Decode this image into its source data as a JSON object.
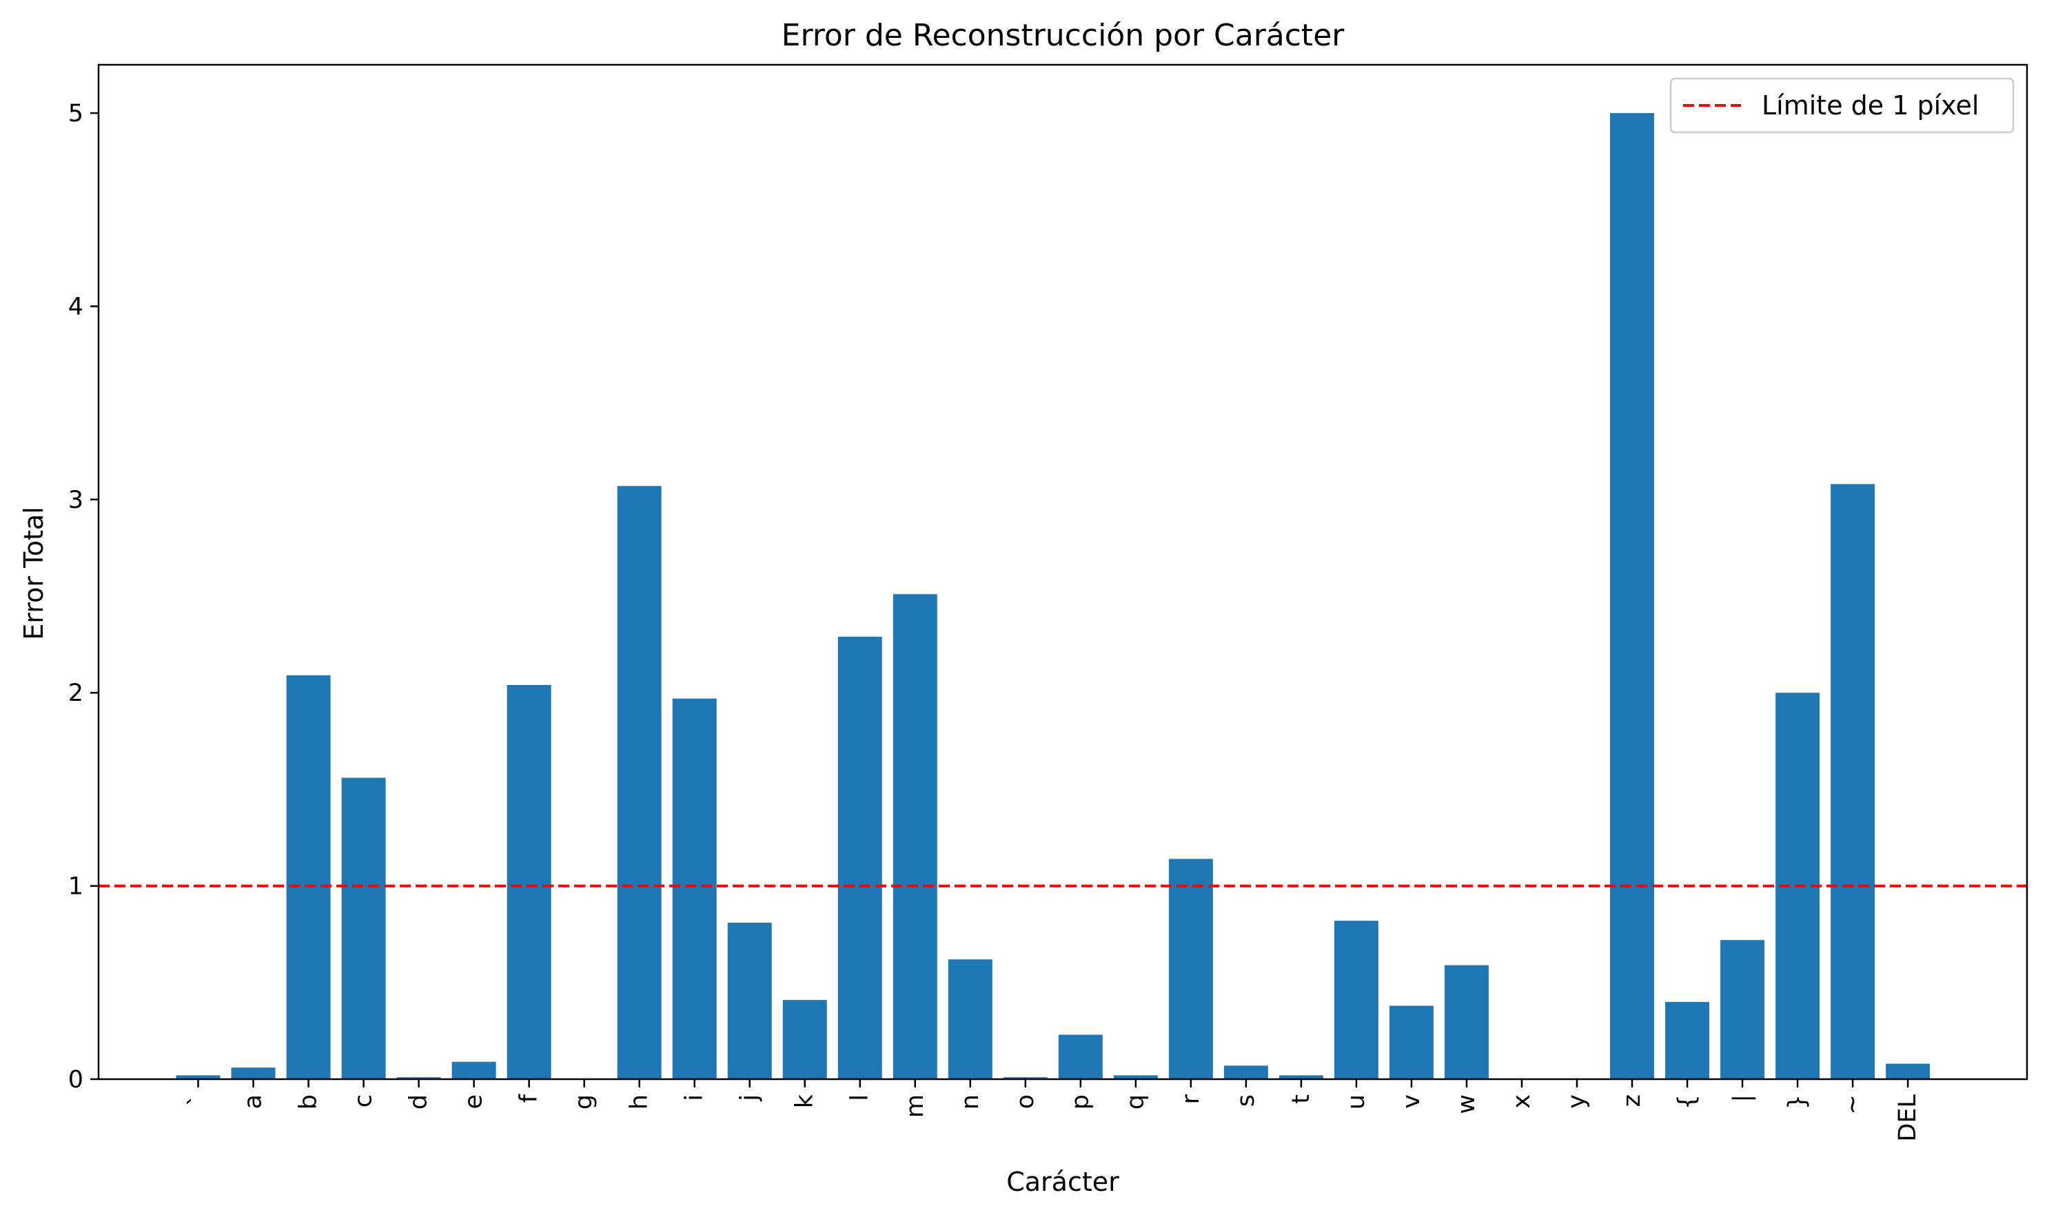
{
  "chart_data": {
    "type": "bar",
    "title": "Error de Reconstrucción por Carácter",
    "xlabel": "Carácter",
    "ylabel": "Error Total",
    "categories": [
      "`",
      "a",
      "b",
      "c",
      "d",
      "e",
      "f",
      "g",
      "h",
      "i",
      "j",
      "k",
      "l",
      "m",
      "n",
      "o",
      "p",
      "q",
      "r",
      "s",
      "t",
      "u",
      "v",
      "w",
      "x",
      "y",
      "z",
      "{",
      "|",
      "}",
      "~",
      "DEL"
    ],
    "series": [
      {
        "values": [
          0.02,
          0.06,
          2.09,
          1.56,
          0.01,
          0.09,
          2.04,
          0.0,
          3.07,
          1.97,
          0.81,
          0.41,
          2.29,
          2.51,
          0.62,
          0.01,
          0.23,
          0.02,
          1.14,
          0.07,
          0.02,
          0.82,
          0.38,
          0.59,
          0.0,
          0.0,
          5.0,
          0.4,
          0.72,
          2.0,
          3.08,
          0.08
        ],
        "color": "#1f77b4"
      }
    ],
    "ylim": [
      0,
      5.25
    ],
    "yticks": [
      "0",
      "1",
      "2",
      "3",
      "4",
      "5"
    ],
    "reference_line": {
      "y": 1,
      "label": "Límite de 1 píxel",
      "color": "#ff0000",
      "style": "dashed"
    },
    "legend": {
      "position": "top-right",
      "entries": [
        "Límite de 1 píxel"
      ]
    },
    "grid": false
  }
}
